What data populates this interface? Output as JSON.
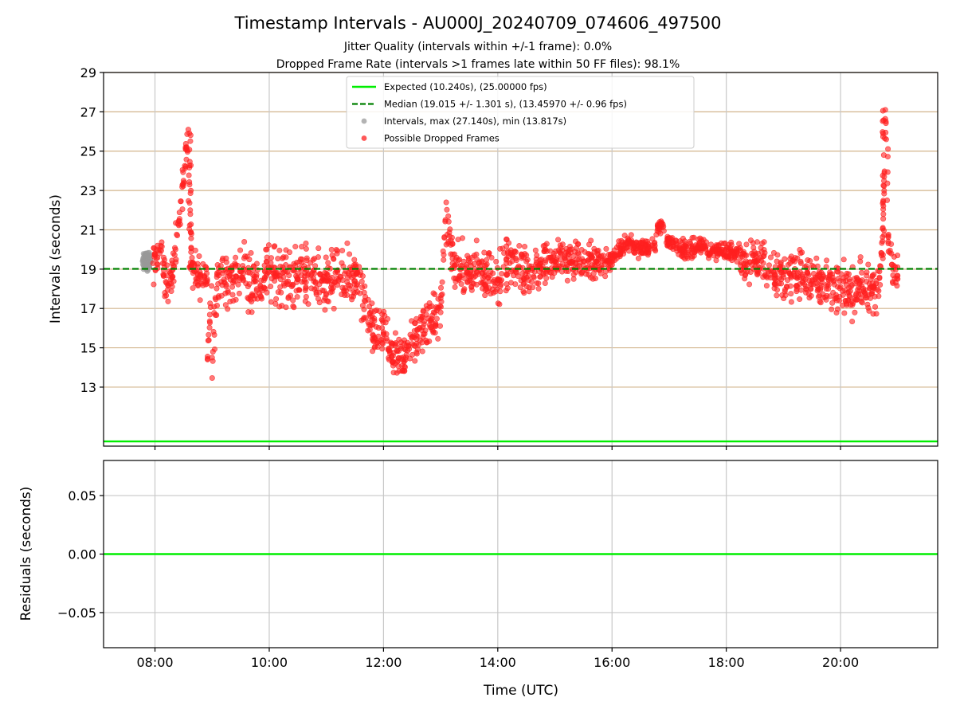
{
  "chart_data": [
    {
      "type": "scatter",
      "title": "Timestamp Intervals - AU000J_20240709_074606_497500",
      "subtitle_line1": "Jitter Quality (intervals within +/-1 frame): 0.0%",
      "subtitle_line2": "Dropped Frame Rate (intervals >1 frames late within 50 FF files): 98.1%",
      "ylabel": "Intervals (seconds)",
      "xlabel": "",
      "xlim": [
        "07:06",
        "21:42"
      ],
      "ylim": [
        10.0,
        29.0
      ],
      "yticks": [
        "13",
        "15",
        "17",
        "19",
        "21",
        "23",
        "25",
        "27",
        "29"
      ],
      "xticks": [
        "08:00",
        "10:00",
        "12:00",
        "14:00",
        "16:00",
        "18:00",
        "20:00"
      ],
      "grid": "on",
      "legend_position": "top-center",
      "legend": [
        {
          "label": "Expected (10.240s), (25.00000 fps)",
          "style": "line",
          "color": "#00ee00"
        },
        {
          "label": "Median (19.015 +/- 1.301 s), (13.45970 +/- 0.96 fps)",
          "style": "dashed",
          "color": "#008000"
        },
        {
          "label": "Intervals, max (27.140s), min (13.817s)",
          "style": "dot",
          "color": "#999999"
        },
        {
          "label": "Possible Dropped Frames",
          "style": "dot",
          "color": "#ff2020"
        }
      ],
      "reference_lines": [
        {
          "name": "Expected",
          "y": 10.24,
          "color": "#00ee00"
        },
        {
          "name": "Median",
          "y": 19.015,
          "color": "#008000"
        }
      ],
      "series": [
        {
          "name": "Intervals, max (27.140s), min (13.817s)",
          "color": "#999999",
          "note_points": "gray cluster 07:47-07:55 around 19.0-19.8",
          "x": [
            "07:47",
            "07:48",
            "07:49",
            "07:50",
            "07:51",
            "07:52",
            "07:53",
            "07:54",
            "07:55",
            "07:48",
            "07:50",
            "07:52",
            "07:54"
          ],
          "y": [
            19.4,
            19.6,
            19.2,
            19.5,
            19.7,
            19.3,
            19.6,
            19.4,
            19.5,
            19.0,
            19.8,
            18.9,
            19.1
          ]
        },
        {
          "name": "Possible Dropped Frames",
          "color": "#ff2020",
          "x": [
            "07:58",
            "08:05",
            "08:12",
            "08:18",
            "08:24",
            "08:30",
            "08:33",
            "08:35",
            "08:37",
            "08:38",
            "08:39",
            "08:40",
            "08:45",
            "08:55",
            "09:00",
            "09:05",
            "09:15",
            "09:30",
            "09:45",
            "10:00",
            "10:15",
            "10:30",
            "10:45",
            "11:00",
            "11:15",
            "11:30",
            "11:40",
            "11:50",
            "12:00",
            "12:10",
            "12:20",
            "12:30",
            "12:40",
            "12:50",
            "13:00",
            "13:05",
            "13:15",
            "13:30",
            "13:45",
            "14:00",
            "14:15",
            "14:30",
            "14:45",
            "15:00",
            "15:15",
            "15:30",
            "15:45",
            "16:00",
            "16:15",
            "16:30",
            "16:45",
            "16:50",
            "17:00",
            "17:15",
            "17:30",
            "17:45",
            "18:00",
            "18:15",
            "18:30",
            "18:45",
            "19:00",
            "19:15",
            "19:30",
            "19:45",
            "20:00",
            "20:10",
            "20:20",
            "20:30",
            "20:40",
            "20:43",
            "20:45",
            "20:46",
            "20:47",
            "20:48",
            "20:50",
            "20:55",
            "21:00"
          ],
          "y": [
            19.3,
            19.8,
            18.3,
            18.6,
            21.3,
            23.5,
            25.2,
            26.1,
            22.0,
            20.1,
            19.3,
            18.8,
            18.7,
            18.4,
            14.5,
            18.6,
            18.2,
            18.9,
            18.4,
            18.9,
            18.6,
            18.5,
            18.8,
            18.4,
            18.6,
            18.4,
            17.4,
            15.5,
            15.8,
            14.6,
            14.4,
            15.2,
            15.9,
            16.4,
            16.8,
            21.5,
            19.2,
            18.6,
            19.0,
            18.5,
            19.4,
            18.9,
            19.3,
            19.4,
            19.5,
            19.4,
            19.3,
            19.5,
            20.3,
            20.1,
            20.2,
            21.4,
            20.3,
            20.0,
            20.1,
            19.9,
            20.0,
            19.6,
            19.5,
            19.2,
            18.6,
            18.8,
            18.4,
            18.0,
            18.1,
            17.6,
            18.3,
            17.7,
            17.9,
            19.7,
            21.8,
            23.9,
            27.1,
            25.6,
            20.4,
            19.0,
            18.5
          ]
        }
      ]
    },
    {
      "type": "line",
      "ylabel": "Residuals (seconds)",
      "xlabel": "Time (UTC)",
      "xlim": [
        "07:06",
        "21:42"
      ],
      "ylim": [
        -0.08,
        0.08
      ],
      "yticks": [
        "0.05",
        "0.00",
        "−0.05"
      ],
      "xticks": [
        "08:00",
        "10:00",
        "12:00",
        "14:00",
        "16:00",
        "18:00",
        "20:00"
      ],
      "grid": "on",
      "series": [
        {
          "name": "",
          "color": "#00ee00",
          "x": [
            "07:06",
            "21:42"
          ],
          "y": [
            0.0,
            0.0
          ]
        }
      ]
    }
  ]
}
